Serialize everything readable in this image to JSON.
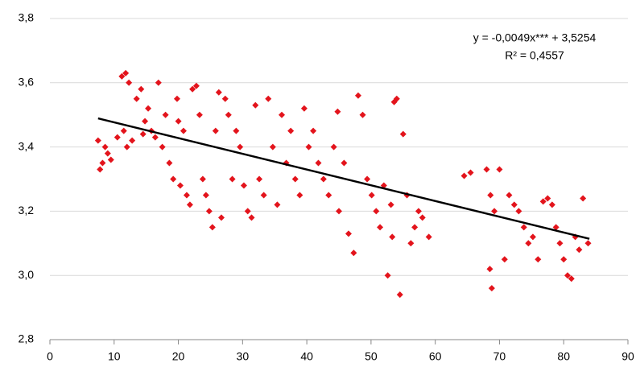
{
  "chart_data": {
    "type": "scatter",
    "annotations": [
      "y = -0,0049x*** + 3,5254",
      "R² = 0,4557"
    ],
    "xlim": [
      0,
      90
    ],
    "xticks": [
      0,
      10,
      20,
      30,
      40,
      50,
      60,
      70,
      80,
      90
    ],
    "ylim": [
      2.8,
      3.8
    ],
    "yticks": [
      {
        "value": 2.8,
        "label": "2,8"
      },
      {
        "value": 3.0,
        "label": "3,0"
      },
      {
        "value": 3.2,
        "label": "3,2"
      },
      {
        "value": 3.4,
        "label": "3,4"
      },
      {
        "value": 3.6,
        "label": "3,6"
      },
      {
        "value": 3.8,
        "label": "3,8"
      }
    ],
    "grid": true,
    "series": [
      {
        "color": "#e3141c",
        "x": [
          7.5,
          7.8,
          8.2,
          8.6,
          9.0,
          9.5,
          10.5,
          11.2,
          11.8,
          12.3,
          12.0,
          11.5,
          12.8,
          13.5,
          14.2,
          14.8,
          15.3,
          15.8,
          16.4,
          16.9,
          14.5,
          17.5,
          18.0,
          18.6,
          19.2,
          19.8,
          20.3,
          20.8,
          21.3,
          21.8,
          20.0,
          22.2,
          22.8,
          23.3,
          23.8,
          24.3,
          24.8,
          25.3,
          25.8,
          26.3,
          26.7,
          27.3,
          27.8,
          28.4,
          29.0,
          29.6,
          30.2,
          30.8,
          31.4,
          32.0,
          32.6,
          33.3,
          34.0,
          34.7,
          35.4,
          36.1,
          36.8,
          37.5,
          38.2,
          38.9,
          39.6,
          40.3,
          41.0,
          41.8,
          42.6,
          43.4,
          44.2,
          45.0,
          45.8,
          46.5,
          44.8,
          47.3,
          48.0,
          48.7,
          49.4,
          50.1,
          50.8,
          51.4,
          52.0,
          52.6,
          53.1,
          53.6,
          54.0,
          53.3,
          54.5,
          55.0,
          55.6,
          56.2,
          56.8,
          57.4,
          58.0,
          59.0,
          64.5,
          65.5,
          68.0,
          68.6,
          69.2,
          68.5,
          68.8,
          70.0,
          70.8,
          71.5,
          72.3,
          73.0,
          73.8,
          74.5,
          75.2,
          76.0,
          76.8,
          77.5,
          78.2,
          78.8,
          79.4,
          80.0,
          80.6,
          81.2,
          81.8,
          82.4,
          83.0,
          83.8
        ],
        "values": [
          3.42,
          3.33,
          3.35,
          3.4,
          3.38,
          3.36,
          3.43,
          3.62,
          3.63,
          3.6,
          3.4,
          3.45,
          3.42,
          3.55,
          3.58,
          3.48,
          3.52,
          3.45,
          3.43,
          3.6,
          3.44,
          3.4,
          3.5,
          3.35,
          3.3,
          3.55,
          3.28,
          3.45,
          3.25,
          3.22,
          3.48,
          3.58,
          3.59,
          3.5,
          3.3,
          3.25,
          3.2,
          3.15,
          3.45,
          3.57,
          3.18,
          3.55,
          3.5,
          3.3,
          3.45,
          3.4,
          3.28,
          3.2,
          3.18,
          3.53,
          3.3,
          3.25,
          3.55,
          3.4,
          3.22,
          3.5,
          3.35,
          3.45,
          3.3,
          3.25,
          3.52,
          3.4,
          3.45,
          3.35,
          3.3,
          3.25,
          3.4,
          3.2,
          3.35,
          3.13,
          3.51,
          3.07,
          3.56,
          3.5,
          3.3,
          3.25,
          3.2,
          3.15,
          3.28,
          3.0,
          3.22,
          3.54,
          3.55,
          3.12,
          2.94,
          3.44,
          3.25,
          3.1,
          3.15,
          3.2,
          3.18,
          3.12,
          3.31,
          3.32,
          3.33,
          3.25,
          3.2,
          3.02,
          2.96,
          3.33,
          3.05,
          3.25,
          3.22,
          3.2,
          3.15,
          3.1,
          3.12,
          3.05,
          3.23,
          3.24,
          3.22,
          3.15,
          3.1,
          3.05,
          3.0,
          2.99,
          3.12,
          3.08,
          3.24,
          3.1
        ]
      },
      {
        "color": "#000000",
        "x": [
          7.5,
          84
        ],
        "values": [
          3.489,
          3.114
        ]
      }
    ]
  }
}
